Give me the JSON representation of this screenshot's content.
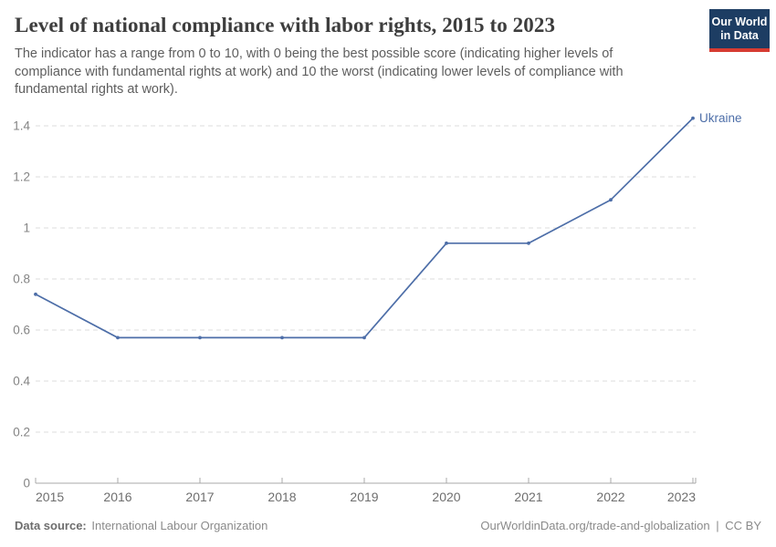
{
  "header": {
    "title": "Level of national compliance with labor rights, 2015 to 2023",
    "subtitle_lines": [
      "The indicator has a range from 0 to 10, with 0 being the best possible score (indicating higher levels of",
      "compliance with fundamental rights at work) and 10 the worst (indicating lower levels of compliance with",
      "fundamental rights at work)."
    ],
    "logo": {
      "line1": "Our World",
      "line2": "in Data",
      "bg_color": "#1d3d63",
      "accent_color": "#d73c32"
    }
  },
  "footer": {
    "source_label": "Data source:",
    "source_value": "International Labour Organization",
    "link_text": "OurWorldinData.org/trade-and-globalization",
    "separator": "|",
    "license_text": "CC BY"
  },
  "chart_data": {
    "type": "line",
    "title": "Level of national compliance with labor rights, 2015 to 2023",
    "x": [
      2015,
      2016,
      2017,
      2018,
      2019,
      2020,
      2021,
      2022,
      2023
    ],
    "series": [
      {
        "name": "Ukraine",
        "color": "#4d6ea8",
        "values": [
          0.74,
          0.57,
          0.57,
          0.57,
          0.57,
          0.94,
          0.94,
          1.11,
          1.43
        ]
      }
    ],
    "x_ticks": [
      2015,
      2016,
      2017,
      2018,
      2019,
      2020,
      2021,
      2022,
      2023
    ],
    "y_ticks": [
      0,
      0.2,
      0.4,
      0.6,
      0.8,
      1,
      1.2,
      1.4
    ],
    "xlim": [
      2015,
      2023
    ],
    "ylim": [
      0,
      1.43
    ],
    "grid": "dashed-horizontal",
    "legend_position": "end-of-line-label",
    "xlabel": "",
    "ylabel": ""
  }
}
